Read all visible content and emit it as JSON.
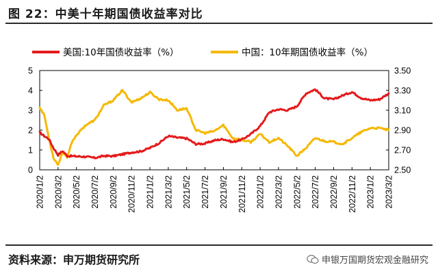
{
  "header": {
    "title": "图 22：中美十年期国债收益率对比"
  },
  "footer": {
    "source": "资料来源：申万期货研究所",
    "watermark": "申银万国期货宏观金融研究"
  },
  "chart_data": {
    "type": "line",
    "title": "中美十年期国债收益率对比",
    "legend_position": "top",
    "x_ticks": [
      "2020/1/2",
      "2020/3/2",
      "2020/5/2",
      "2020/7/2",
      "2020/9/2",
      "2020/11/2",
      "2021/1/2",
      "2021/3/2",
      "2021/5/2",
      "2021/7/2",
      "2021/9/2",
      "2021/11/2",
      "2022/1/2",
      "2022/3/2",
      "2022/5/2",
      "2022/7/2",
      "2022/9/2",
      "2022/11/2",
      "2023/1/2",
      "2023/3/2"
    ],
    "y_left": {
      "min": 0,
      "max": 5,
      "ticks": [
        "0",
        "1",
        "2",
        "3",
        "4",
        "5"
      ]
    },
    "y_right": {
      "min": 2.5,
      "max": 3.5,
      "ticks": [
        "2.50",
        "2.70",
        "2.90",
        "3.10",
        "3.30",
        "3.50"
      ]
    },
    "series": [
      {
        "name": "美国:10年国债收益率（%）",
        "axis": "left",
        "color": "#e41a1c",
        "months": [
          0,
          0.5,
          1,
          1.5,
          2,
          2.5,
          3,
          4,
          5,
          6,
          7,
          8,
          9,
          10,
          11,
          12,
          13,
          14,
          15,
          16,
          17,
          18,
          19,
          20,
          21,
          22,
          23,
          24,
          25,
          26,
          27,
          28,
          29,
          30,
          31,
          32,
          33,
          34,
          35,
          36,
          37,
          38
        ],
        "values": [
          1.88,
          1.7,
          1.55,
          1.1,
          0.75,
          0.95,
          0.7,
          0.68,
          0.66,
          0.6,
          0.7,
          0.69,
          0.78,
          0.88,
          0.93,
          1.1,
          1.35,
          1.7,
          1.62,
          1.58,
          1.3,
          1.32,
          1.48,
          1.55,
          1.4,
          1.52,
          1.8,
          2.2,
          2.9,
          3.05,
          3.0,
          3.2,
          3.85,
          4.05,
          3.6,
          3.55,
          3.75,
          3.92,
          3.62,
          3.5,
          3.55,
          3.85
        ]
      },
      {
        "name": "中国：10年期国债收益率（%）",
        "axis": "right",
        "color": "#f5b800",
        "months": [
          0,
          0.5,
          1,
          1.5,
          2,
          2.5,
          3,
          3.5,
          4,
          5,
          6,
          7,
          8,
          9,
          10,
          11,
          12,
          13,
          14,
          15,
          16,
          17,
          18,
          19,
          20,
          21,
          22,
          23,
          24,
          25,
          26,
          27,
          28,
          29,
          30,
          31,
          32,
          33,
          34,
          35,
          36,
          37,
          38
        ],
        "values": [
          3.13,
          3.05,
          2.82,
          2.62,
          2.55,
          2.68,
          2.62,
          2.78,
          2.85,
          2.95,
          3.0,
          3.15,
          3.2,
          3.3,
          3.18,
          3.22,
          3.28,
          3.21,
          3.2,
          3.1,
          3.12,
          2.9,
          2.87,
          2.89,
          2.95,
          2.82,
          2.8,
          2.78,
          2.86,
          2.78,
          2.82,
          2.74,
          2.64,
          2.72,
          2.82,
          2.79,
          2.78,
          2.76,
          2.82,
          2.88,
          2.92,
          2.92,
          2.9
        ]
      }
    ]
  }
}
